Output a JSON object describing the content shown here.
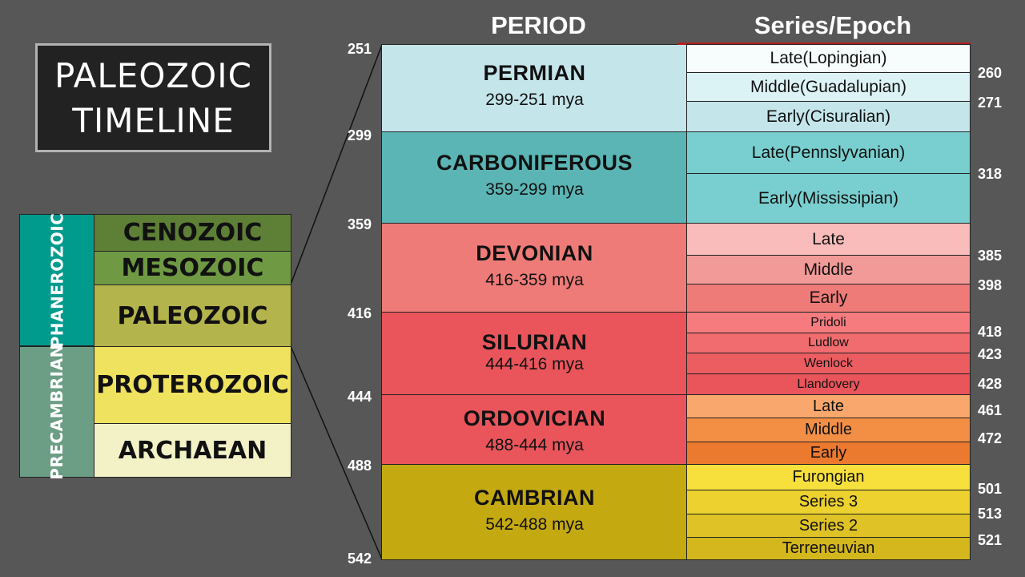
{
  "title": {
    "line1": "PALEOZOIC",
    "line2": "TIMELINE"
  },
  "headers": {
    "period": "PERIOD",
    "epoch": "Series/Epoch"
  },
  "eons": [
    {
      "label": "PHANEROZOIC",
      "color": "#009b8d"
    },
    {
      "label": "PRECAMBRIAN",
      "color": "#6b9e84"
    }
  ],
  "eras": [
    {
      "label": "CENOZOIC",
      "color": "#5e7f36"
    },
    {
      "label": "MESOZOIC",
      "color": "#6f9a43"
    },
    {
      "label": "PALEOZOIC",
      "color": "#b4b44c"
    },
    {
      "label": "PROTEROZOIC",
      "color": "#efe25e"
    },
    {
      "label": "ARCHAEAN",
      "color": "#f3f1c6"
    }
  ],
  "periods": [
    {
      "name": "PERMIAN",
      "range": "299-251 mya",
      "color": "#c4e6eb"
    },
    {
      "name": "CARBONIFEROUS",
      "range": "359-299 mya",
      "color": "#5ab5b4"
    },
    {
      "name": "DEVONIAN",
      "range": "416-359 mya",
      "color": "#ee7b77"
    },
    {
      "name": "SILURIAN",
      "range": "444-416 mya",
      "color": "#e9555b"
    },
    {
      "name": "ORDOVICIAN",
      "range": "488-444 mya",
      "color": "#e9555b"
    },
    {
      "name": "CAMBRIAN",
      "range": "542-488 mya",
      "color": "#c4a910"
    }
  ],
  "epochs": [
    {
      "label": "Late(Lopingian)",
      "color": "#f7fdfd"
    },
    {
      "label": "Middle(Guadalupian)",
      "color": "#dcf3f5"
    },
    {
      "label": "Early(Cisuralian)",
      "color": "#c4e6eb"
    },
    {
      "label": "Late(Pennslyvanian)",
      "color": "#79cfcf"
    },
    {
      "label": "Early(Mississipian)",
      "color": "#79cfcf"
    },
    {
      "label": "Late",
      "color": "#f9bcba"
    },
    {
      "label": "Middle",
      "color": "#f29a98"
    },
    {
      "label": "Early",
      "color": "#ee7b77"
    },
    {
      "label": "Pridoli",
      "color": "#f57b7e"
    },
    {
      "label": "Ludlow",
      "color": "#f16c6f"
    },
    {
      "label": "Wenlock",
      "color": "#ec5d62"
    },
    {
      "label": "Llandovery",
      "color": "#e9555b"
    },
    {
      "label": "Late",
      "color": "#f9a76c"
    },
    {
      "label": "Middle",
      "color": "#f38f45"
    },
    {
      "label": "Early",
      "color": "#ec7a2e"
    },
    {
      "label": "Furongian",
      "color": "#f7df3c"
    },
    {
      "label": "Series 3",
      "color": "#ecd12f"
    },
    {
      "label": "Series 2",
      "color": "#dfc326"
    },
    {
      "label": "Terreneuvian",
      "color": "#d3b71c"
    }
  ],
  "period_boundaries": [
    "251",
    "299",
    "359",
    "416",
    "444",
    "488",
    "542"
  ],
  "epoch_boundaries": [
    "260",
    "271",
    "318",
    "385",
    "398",
    "418",
    "423",
    "428",
    "461",
    "472",
    "501",
    "513",
    "521"
  ]
}
